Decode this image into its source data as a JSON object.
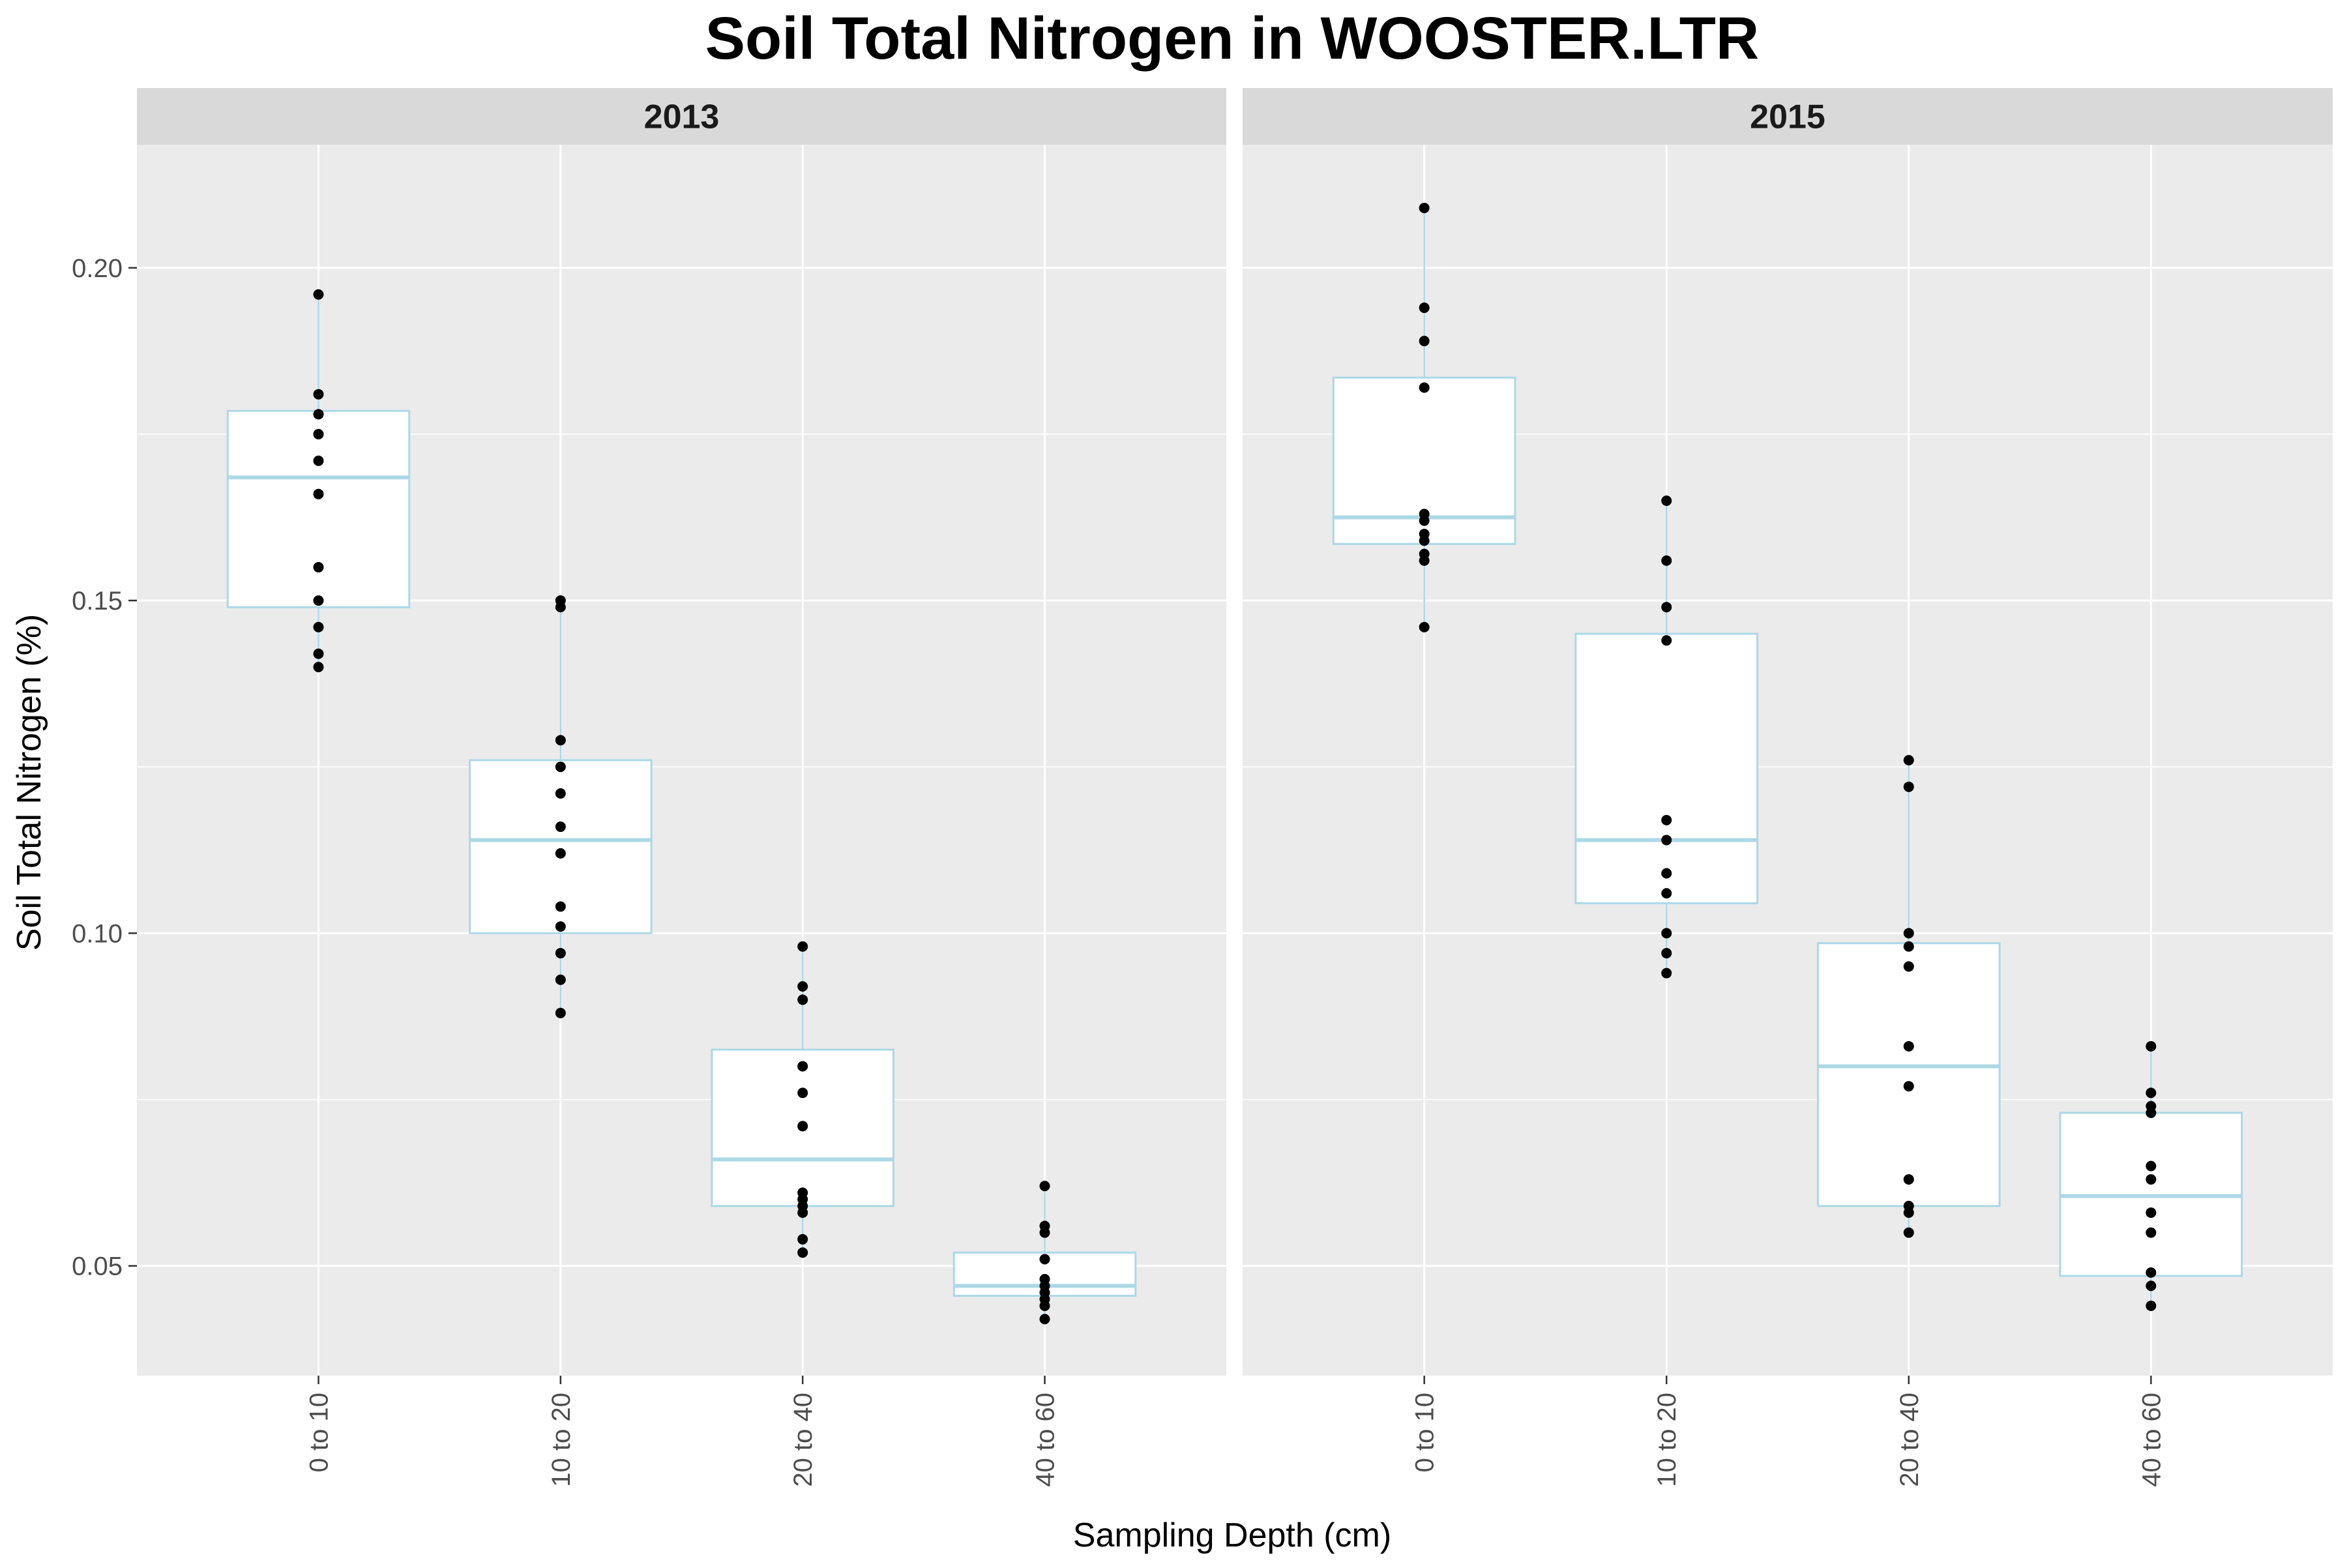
{
  "chart_data": {
    "type": "boxplot",
    "title": "Soil Total Nitrogen in WOOSTER.LTR",
    "xlabel": "Sampling Depth (cm)",
    "ylabel": "Soil Total Nitrogen (%)",
    "ylim": [
      0.0335,
      0.2185
    ],
    "yticks": [
      0.05,
      0.1,
      0.15,
      0.2
    ],
    "ytick_labels": [
      "0.05",
      "0.10",
      "0.15",
      "0.20"
    ],
    "grid": true,
    "legend": "none",
    "categories": [
      "0 to 10",
      "10 to 20",
      "20 to 40",
      "40 to 60"
    ],
    "colors": {
      "panel_bg": "#ebebeb",
      "strip_bg": "#d9d9d9",
      "grid": "#ffffff",
      "box_stroke": "#add8e6",
      "box_fill": "#ffffff",
      "point": "#000000",
      "tick": "#333333"
    },
    "facets": [
      {
        "label": "2013",
        "boxes": [
          {
            "category": "0 to 10",
            "whisker_low": 0.14,
            "q1": 0.149,
            "median": 0.1685,
            "q3": 0.1785,
            "whisker_high": 0.196,
            "points": [
              0.196,
              0.181,
              0.178,
              0.175,
              0.171,
              0.166,
              0.155,
              0.15,
              0.146,
              0.142,
              0.14
            ]
          },
          {
            "category": "10 to 20",
            "whisker_low": 0.088,
            "q1": 0.1,
            "median": 0.114,
            "q3": 0.126,
            "whisker_high": 0.15,
            "points": [
              0.15,
              0.149,
              0.129,
              0.125,
              0.121,
              0.116,
              0.112,
              0.104,
              0.101,
              0.097,
              0.093,
              0.088
            ]
          },
          {
            "category": "20 to 40",
            "whisker_low": 0.052,
            "q1": 0.059,
            "median": 0.066,
            "q3": 0.0825,
            "whisker_high": 0.098,
            "points": [
              0.098,
              0.092,
              0.09,
              0.08,
              0.076,
              0.071,
              0.061,
              0.06,
              0.059,
              0.058,
              0.054,
              0.052
            ]
          },
          {
            "category": "40 to 60",
            "whisker_low": 0.042,
            "q1": 0.0455,
            "median": 0.047,
            "q3": 0.052,
            "whisker_high": 0.062,
            "points": [
              0.062,
              0.056,
              0.055,
              0.051,
              0.048,
              0.047,
              0.046,
              0.045,
              0.044,
              0.042
            ]
          }
        ]
      },
      {
        "label": "2015",
        "boxes": [
          {
            "category": "0 to 10",
            "whisker_low": 0.146,
            "q1": 0.1585,
            "median": 0.1625,
            "q3": 0.1835,
            "whisker_high": 0.209,
            "points": [
              0.209,
              0.194,
              0.189,
              0.182,
              0.163,
              0.162,
              0.16,
              0.159,
              0.157,
              0.156,
              0.146
            ]
          },
          {
            "category": "10 to 20",
            "whisker_low": 0.094,
            "q1": 0.1045,
            "median": 0.114,
            "q3": 0.145,
            "whisker_high": 0.165,
            "points": [
              0.165,
              0.156,
              0.149,
              0.144,
              0.117,
              0.114,
              0.109,
              0.106,
              0.1,
              0.097,
              0.094
            ]
          },
          {
            "category": "20 to 40",
            "whisker_low": 0.055,
            "q1": 0.059,
            "median": 0.08,
            "q3": 0.0985,
            "whisker_high": 0.126,
            "points": [
              0.126,
              0.122,
              0.1,
              0.098,
              0.095,
              0.083,
              0.077,
              0.063,
              0.059,
              0.058,
              0.055
            ]
          },
          {
            "category": "40 to 60",
            "whisker_low": 0.044,
            "q1": 0.0485,
            "median": 0.0605,
            "q3": 0.073,
            "whisker_high": 0.083,
            "points": [
              0.083,
              0.076,
              0.074,
              0.073,
              0.065,
              0.063,
              0.058,
              0.055,
              0.049,
              0.047,
              0.044
            ]
          }
        ]
      }
    ]
  }
}
